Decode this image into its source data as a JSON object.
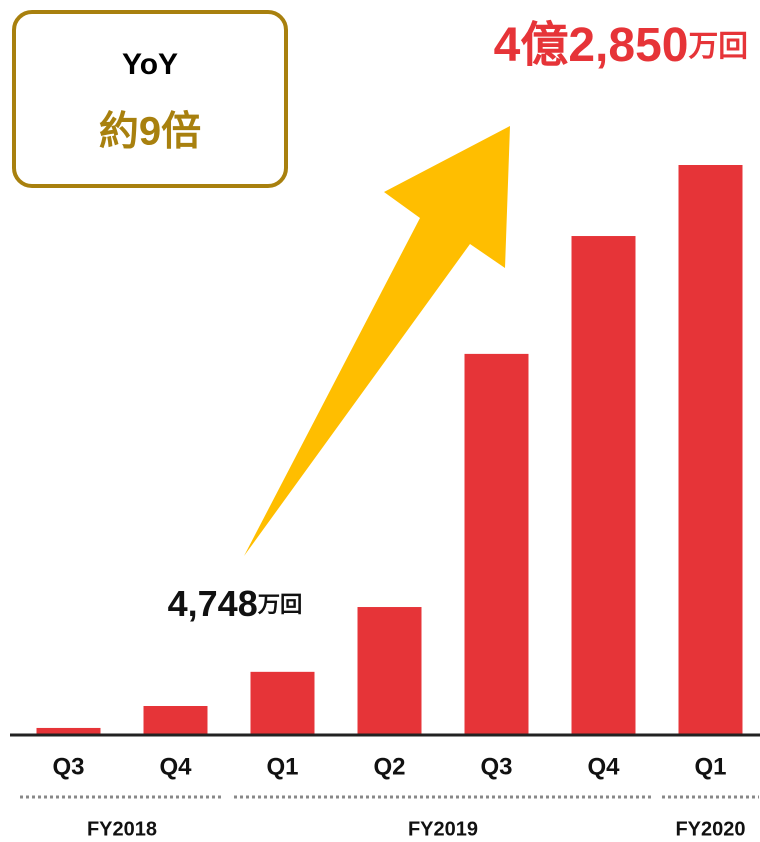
{
  "chart_data": {
    "type": "bar",
    "categories": [
      "Q3",
      "Q4",
      "Q1",
      "Q2",
      "Q3",
      "Q4",
      "Q1"
    ],
    "values": [
      530,
      2180,
      4748,
      9620,
      28650,
      37510,
      42850
    ],
    "value_labels": [
      null,
      null,
      "4,748万回",
      null,
      null,
      null,
      "4億2,850万回"
    ],
    "color": "#e63438",
    "groups": [
      {
        "label": "FY2018",
        "count": 2
      },
      {
        "label": "FY2019",
        "count": 4
      },
      {
        "label": "FY2020",
        "count": 1
      }
    ],
    "annotation": {
      "title": "YoY",
      "text": "約9倍"
    }
  }
}
